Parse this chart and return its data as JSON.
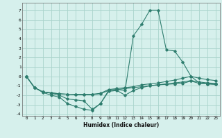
{
  "title": "",
  "xlabel": "Humidex (Indice chaleur)",
  "ylabel": "",
  "bg_color": "#d6f0ec",
  "grid_color": "#aad4cc",
  "line_color": "#2e7d6e",
  "xlim": [
    -0.5,
    23.5
  ],
  "ylim": [
    -4.2,
    7.8
  ],
  "yticks": [
    -4,
    -3,
    -2,
    -1,
    0,
    1,
    2,
    3,
    4,
    5,
    6,
    7
  ],
  "xticks": [
    0,
    1,
    2,
    3,
    4,
    5,
    6,
    7,
    8,
    9,
    10,
    11,
    12,
    13,
    14,
    15,
    16,
    17,
    18,
    19,
    20,
    21,
    22,
    23
  ],
  "series": [
    {
      "x": [
        0,
        1,
        2,
        3,
        4,
        5,
        6,
        7,
        8,
        9,
        10,
        11,
        12,
        13,
        14,
        15,
        16,
        17,
        18,
        19,
        20,
        21,
        22,
        23
      ],
      "y": [
        0,
        -1.2,
        -1.7,
        -2.0,
        -2.2,
        -2.9,
        -3.2,
        -3.5,
        -3.6,
        -2.9,
        -1.6,
        -1.5,
        -2.0,
        -1.5,
        -1.2,
        -1.0,
        -0.9,
        -0.85,
        -0.8,
        -0.75,
        -0.5,
        -0.75,
        -0.8,
        -0.85
      ]
    },
    {
      "x": [
        0,
        1,
        2,
        3,
        4,
        5,
        6,
        7,
        8,
        9,
        10,
        11,
        12,
        13,
        14,
        15,
        16,
        17,
        18,
        19,
        20,
        21,
        22,
        23
      ],
      "y": [
        0,
        -1.2,
        -1.65,
        -1.75,
        -1.85,
        -1.9,
        -1.95,
        -1.95,
        -1.95,
        -1.85,
        -1.5,
        -1.4,
        -1.3,
        -1.2,
        -1.1,
        -1.0,
        -0.9,
        -0.8,
        -0.7,
        -0.6,
        -0.45,
        -0.6,
        -0.7,
        -0.75
      ]
    },
    {
      "x": [
        0,
        1,
        2,
        3,
        4,
        5,
        6,
        7,
        8,
        9,
        10,
        11,
        12,
        13,
        14,
        15,
        16,
        17,
        18,
        19,
        20,
        21,
        22,
        23
      ],
      "y": [
        0,
        -1.2,
        -1.65,
        -1.75,
        -1.85,
        -1.9,
        -1.9,
        -1.9,
        -1.9,
        -1.8,
        -1.4,
        -1.3,
        -1.2,
        -1.1,
        -0.9,
        -0.8,
        -0.7,
        -0.55,
        -0.4,
        -0.2,
        0.0,
        -0.2,
        -0.35,
        -0.45
      ]
    },
    {
      "x": [
        0,
        1,
        2,
        3,
        4,
        5,
        6,
        7,
        8,
        9,
        10,
        11,
        12,
        13,
        14,
        15,
        16,
        17,
        18,
        19,
        20,
        21,
        22,
        23
      ],
      "y": [
        0,
        -1.2,
        -1.65,
        -1.8,
        -2.0,
        -2.4,
        -2.5,
        -2.6,
        -3.5,
        -2.9,
        -1.5,
        -1.4,
        -1.5,
        4.3,
        5.5,
        7.0,
        7.0,
        2.8,
        2.7,
        1.5,
        0.0,
        -0.7,
        -0.8,
        -0.85
      ]
    }
  ]
}
